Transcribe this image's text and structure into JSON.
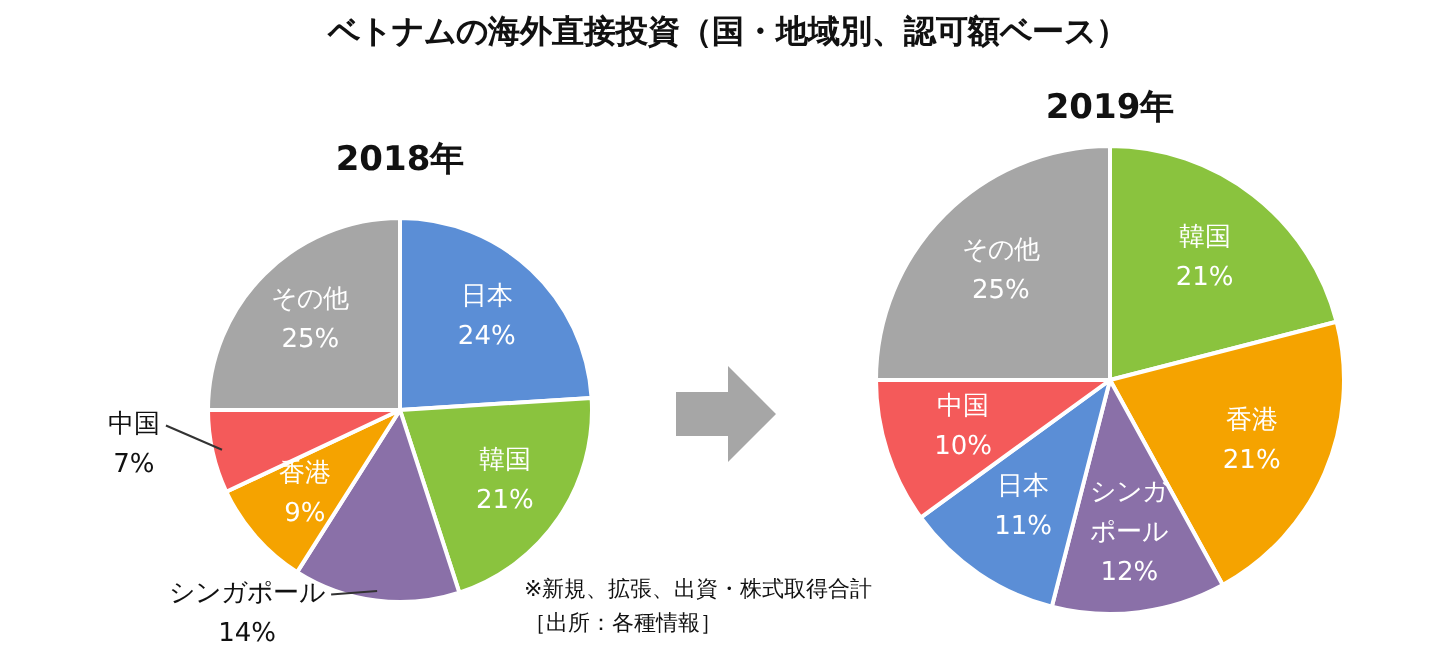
{
  "chart_data": [
    {
      "type": "pie",
      "title": "ベトナムの海外直接投資（国・地域別、認可額ベース）",
      "subtitle": "2018年",
      "categories": [
        "日本",
        "韓国",
        "シンガポール",
        "香港",
        "中国",
        "その他"
      ],
      "values": [
        24,
        21,
        14,
        9,
        7,
        25
      ],
      "value_labels": [
        "24%",
        "21%",
        "14%",
        "9%",
        "7%",
        "25%"
      ],
      "colors": [
        "#5b8ed6",
        "#8ac33e",
        "#8a70a8",
        "#f5a300",
        "#f45a5a",
        "#a6a6a6"
      ],
      "legend": false
    },
    {
      "type": "pie",
      "title": "2019年",
      "categories": [
        "韓国",
        "香港",
        "シンガポール",
        "日本",
        "中国",
        "その他"
      ],
      "values": [
        21,
        21,
        12,
        11,
        10,
        25
      ],
      "value_labels": [
        "21%",
        "21%",
        "12%",
        "11%",
        "10%",
        "25%"
      ],
      "colors": [
        "#8ac33e",
        "#f5a300",
        "#8a70a8",
        "#5b8ed6",
        "#f45a5a",
        "#a6a6a6"
      ],
      "legend": false,
      "annotations": [
        "※新規、拡張、出資・株式取得合計",
        "［出所：各種情報］"
      ]
    }
  ]
}
